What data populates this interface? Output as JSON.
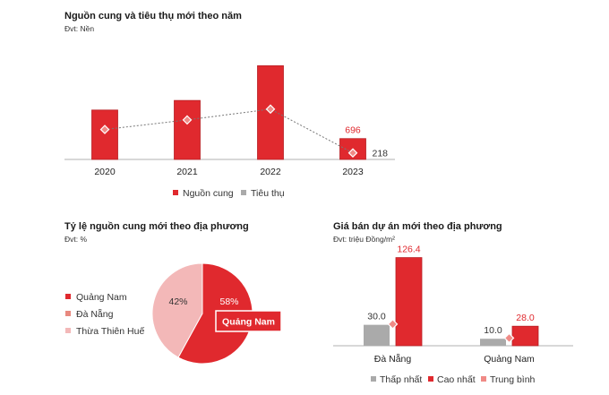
{
  "colors": {
    "red": "#e0292e",
    "red_dark": "#b81f24",
    "salmon": "#e8897f",
    "pink": "#f3b8b8",
    "pink_text": "#f0c4c4",
    "gray": "#aaaaaa",
    "diamond": "#f08a86",
    "line": "#777777"
  },
  "chart_data": [
    {
      "id": "yearly",
      "type": "bar",
      "title": "Nguồn cung và tiêu thụ mới theo năm",
      "unit": "Đvt: Nền",
      "categories": [
        "2020",
        "2021",
        "2022",
        "2023"
      ],
      "series": [
        {
          "name": "Nguồn cung",
          "values": [
            1650,
            1970,
            3130,
            696
          ]
        },
        {
          "name": "Tiêu thụ",
          "values": [
            1000,
            1320,
            1680,
            218
          ]
        }
      ],
      "ylim": [
        0,
        3350
      ],
      "data_labels": {
        "2023": {
          "Nguồn cung": "696",
          "Tiêu thụ": "218"
        }
      },
      "legend": [
        "Nguồn cung",
        "Tiêu thụ"
      ]
    },
    {
      "id": "share",
      "type": "pie",
      "title": "Tỷ lệ nguồn cung mới theo địa phương",
      "unit": "Đvt: %",
      "slices": [
        {
          "name": "Quảng Nam",
          "value": 58,
          "label": "58%"
        },
        {
          "name": "Thừa Thiên Huế",
          "value": 42,
          "label": "42%"
        }
      ],
      "legend": [
        "Quảng Nam",
        "Đà Nẵng",
        "Thừa Thiên Huế"
      ],
      "callout": "Quảng Nam"
    },
    {
      "id": "price",
      "type": "bar",
      "title": "Giá bán dự án mới theo địa phương",
      "unit": "Đvt: triệu Đồng/m²",
      "categories": [
        "Đà Nẵng",
        "Quảng Nam"
      ],
      "series": [
        {
          "name": "Thấp nhất",
          "values": [
            30.0,
            10.0
          ],
          "labels": [
            "30.0",
            "10.0"
          ]
        },
        {
          "name": "Cao nhất",
          "values": [
            126.4,
            28.0
          ],
          "labels": [
            "126.4",
            "28.0"
          ]
        },
        {
          "name": "Trung bình",
          "values": [
            31.0,
            11.0
          ]
        }
      ],
      "ylim": [
        0,
        140
      ],
      "legend": [
        "Thấp nhất",
        "Cao nhất",
        "Trung bình"
      ]
    }
  ]
}
